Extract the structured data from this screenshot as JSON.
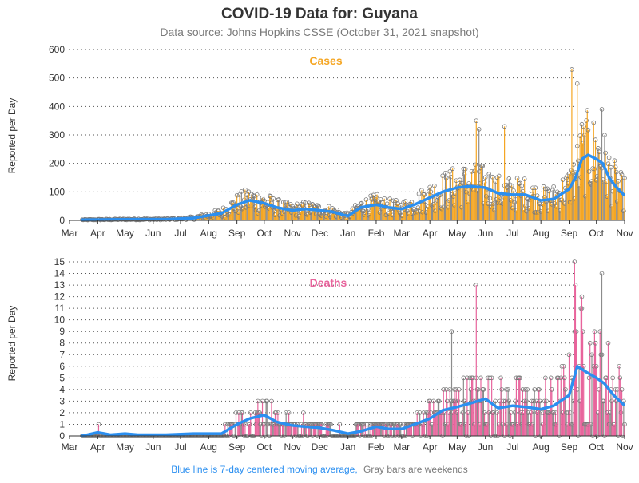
{
  "title": "COVID-19 Data for: Guyana",
  "subtitle": "Data source: Johns Hopkins CSSE (October 31, 2021 snapshot)",
  "footer": {
    "blue_note": "Blue line is 7-day centered moving average,",
    "gray_note": "Gray bars are weekends"
  },
  "colors": {
    "cases": "#f5a623",
    "deaths": "#e8649c",
    "weekend": "#8c8c8c",
    "average": "#2b8ff0",
    "title": "#333333",
    "subtitle": "#7a7a7a",
    "grid": "#555555"
  },
  "months": [
    "Mar",
    "Apr",
    "May",
    "Jun",
    "Jul",
    "Aug",
    "Sep",
    "Oct",
    "Nov",
    "Dec",
    "Jan",
    "Feb",
    "Mar",
    "Apr",
    "May",
    "Jun",
    "Jul",
    "Aug",
    "Sep",
    "Oct",
    "Nov"
  ],
  "chart_data": [
    {
      "type": "bar",
      "title": "Cases",
      "ylabel": "Reported per Day",
      "x_range": [
        "2020-03-01",
        "2021-11-01"
      ],
      "ylim": [
        0,
        600
      ],
      "yticks": [
        0,
        100,
        200,
        300,
        400,
        500,
        600
      ],
      "grid": true,
      "overlay": "7-day centered moving average line",
      "series": [
        {
          "x": [
            "2020-03-15",
            "2020-04-15",
            "2020-05-15",
            "2020-06-15",
            "2020-07-15",
            "2020-08-15",
            "2020-09-01",
            "2020-09-15",
            "2020-10-01",
            "2020-10-15",
            "2020-11-01",
            "2020-11-15",
            "2020-12-01",
            "2020-12-15",
            "2021-01-01",
            "2021-01-15",
            "2021-02-01",
            "2021-02-15",
            "2021-03-01",
            "2021-03-15",
            "2021-04-01",
            "2021-04-15",
            "2021-05-01",
            "2021-05-15",
            "2021-06-01",
            "2021-06-15",
            "2021-07-01",
            "2021-07-15",
            "2021-08-01",
            "2021-08-15",
            "2021-09-01",
            "2021-09-08",
            "2021-09-15",
            "2021-09-22",
            "2021-10-01",
            "2021-10-08",
            "2021-10-15",
            "2021-10-22",
            "2021-10-31"
          ],
          "values": [
            2,
            3,
            4,
            4,
            8,
            25,
            55,
            70,
            60,
            45,
            35,
            40,
            35,
            30,
            15,
            45,
            55,
            45,
            40,
            55,
            80,
            100,
            115,
            120,
            115,
            95,
            90,
            90,
            70,
            75,
            110,
            150,
            215,
            230,
            215,
            200,
            150,
            120,
            90
          ]
        }
      ],
      "annotations": {
        "max_spike": 530,
        "notable_spikes": [
          350,
          320,
          330,
          390,
          480
        ]
      }
    },
    {
      "type": "bar",
      "title": "Deaths",
      "ylabel": "Reported per Day",
      "x_range": [
        "2020-03-01",
        "2021-11-01"
      ],
      "ylim": [
        0,
        15
      ],
      "yticks": [
        0,
        1,
        2,
        3,
        4,
        5,
        6,
        7,
        8,
        9,
        10,
        11,
        12,
        13,
        14,
        15
      ],
      "grid": true,
      "overlay": "7-day centered moving average line",
      "series": [
        {
          "x": [
            "2020-03-15",
            "2020-04-01",
            "2020-04-15",
            "2020-05-01",
            "2020-05-15",
            "2020-06-15",
            "2020-07-15",
            "2020-08-15",
            "2020-09-01",
            "2020-09-15",
            "2020-10-01",
            "2020-10-15",
            "2020-11-01",
            "2020-11-15",
            "2020-12-01",
            "2020-12-15",
            "2021-01-01",
            "2021-01-15",
            "2021-02-01",
            "2021-02-15",
            "2021-03-01",
            "2021-03-15",
            "2021-04-01",
            "2021-04-15",
            "2021-05-01",
            "2021-05-15",
            "2021-06-01",
            "2021-06-15",
            "2021-07-01",
            "2021-07-15",
            "2021-08-01",
            "2021-08-15",
            "2021-09-01",
            "2021-09-10",
            "2021-09-20",
            "2021-10-01",
            "2021-10-10",
            "2021-10-20",
            "2021-10-31"
          ],
          "values": [
            0,
            0.3,
            0.1,
            0.2,
            0.1,
            0.1,
            0.2,
            0.2,
            1.0,
            1.5,
            1.8,
            1.2,
            0.9,
            0.8,
            0.7,
            0.5,
            0.2,
            0.4,
            0.8,
            0.6,
            0.6,
            1.0,
            1.5,
            2.2,
            2.5,
            2.8,
            3.2,
            2.4,
            2.6,
            2.5,
            2.3,
            2.6,
            3.5,
            6.0,
            5.5,
            5.0,
            4.5,
            3.5,
            2.7
          ]
        }
      ],
      "annotations": {
        "max_spike": 15,
        "notable_spikes": [
          13,
          14,
          12,
          9,
          13
        ]
      }
    }
  ]
}
